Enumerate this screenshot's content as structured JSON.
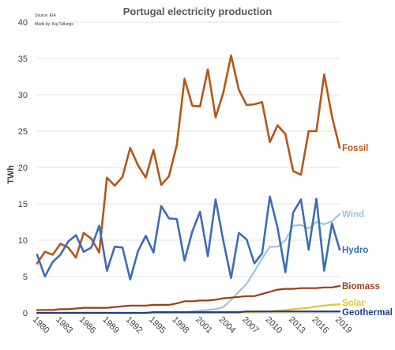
{
  "chart_data": {
    "type": "line",
    "title": "Portugal electricity production",
    "source_lines": [
      "Source: EIA",
      "Made by: Kaj Tallungs"
    ],
    "ylabel": "TWh",
    "xlabel": "",
    "ylim": [
      0,
      40
    ],
    "yticks": [
      0,
      5,
      10,
      15,
      20,
      25,
      30,
      35,
      40
    ],
    "xlim": [
      1980,
      2019
    ],
    "xticks": [
      1980,
      1983,
      1986,
      1989,
      1992,
      1995,
      1998,
      2001,
      2004,
      2007,
      2010,
      2013,
      2016,
      2019
    ],
    "grid": true,
    "legend": "inline-right",
    "x": [
      1980,
      1981,
      1982,
      1983,
      1984,
      1985,
      1986,
      1987,
      1988,
      1989,
      1990,
      1991,
      1992,
      1993,
      1994,
      1995,
      1996,
      1997,
      1998,
      1999,
      2000,
      2001,
      2002,
      2003,
      2004,
      2005,
      2006,
      2007,
      2008,
      2009,
      2010,
      2011,
      2012,
      2013,
      2014,
      2015,
      2016,
      2017,
      2018,
      2019
    ],
    "series": [
      {
        "name": "Fossil",
        "color": "#b5561a",
        "values": [
          6.8,
          8.4,
          8.0,
          9.5,
          9.0,
          7.6,
          11.0,
          10.2,
          8.3,
          18.6,
          17.5,
          18.7,
          22.7,
          20.3,
          18.6,
          22.4,
          17.6,
          18.8,
          23.1,
          32.2,
          28.5,
          28.4,
          33.5,
          26.9,
          30.3,
          35.4,
          30.7,
          28.6,
          28.7,
          29.0,
          23.5,
          25.8,
          24.6,
          19.5,
          19.0,
          25.0,
          25.0,
          32.8,
          27.0,
          22.7
        ]
      },
      {
        "name": "Wind",
        "color": "#9ec3e0",
        "values": [
          0,
          0,
          0,
          0,
          0,
          0,
          0,
          0,
          0,
          0,
          0,
          0,
          0,
          0,
          0,
          0,
          0,
          0,
          0.1,
          0.1,
          0.2,
          0.3,
          0.4,
          0.5,
          0.8,
          1.8,
          2.9,
          4.0,
          5.7,
          7.5,
          9.1,
          9.1,
          10.0,
          12.0,
          12.1,
          11.6,
          12.5,
          12.2,
          12.6,
          13.6
        ]
      },
      {
        "name": "Hydro",
        "color": "#3d6db4",
        "values": [
          8.0,
          5.0,
          7.0,
          8.0,
          9.8,
          10.7,
          8.4,
          9.0,
          12.0,
          5.8,
          9.1,
          9.0,
          4.6,
          8.5,
          10.6,
          8.3,
          14.7,
          13.0,
          12.9,
          7.2,
          11.2,
          13.9,
          7.8,
          15.6,
          9.9,
          4.8,
          11.0,
          10.1,
          6.8,
          8.2,
          16.0,
          11.7,
          5.6,
          13.8,
          15.6,
          8.7,
          15.7,
          5.8,
          12.3,
          8.7
        ]
      },
      {
        "name": "Biomass",
        "color": "#9c3d14",
        "values": [
          0.4,
          0.4,
          0.4,
          0.5,
          0.5,
          0.6,
          0.7,
          0.7,
          0.7,
          0.7,
          0.8,
          0.9,
          1.0,
          1.0,
          1.0,
          1.1,
          1.1,
          1.1,
          1.3,
          1.6,
          1.6,
          1.7,
          1.7,
          1.8,
          2.0,
          2.1,
          2.2,
          2.3,
          2.3,
          2.6,
          2.9,
          3.2,
          3.3,
          3.3,
          3.4,
          3.4,
          3.4,
          3.5,
          3.5,
          3.7
        ]
      },
      {
        "name": "Solar",
        "color": "#e6c42a",
        "values": [
          0,
          0,
          0,
          0,
          0,
          0,
          0,
          0,
          0,
          0,
          0,
          0,
          0,
          0,
          0,
          0,
          0,
          0,
          0,
          0,
          0,
          0,
          0,
          0,
          0,
          0,
          0,
          0.1,
          0.1,
          0.2,
          0.2,
          0.3,
          0.4,
          0.5,
          0.6,
          0.7,
          0.9,
          1.0,
          1.1,
          1.2
        ]
      },
      {
        "name": "Geothermal",
        "color": "#1f3f8c",
        "values": [
          0,
          0,
          0,
          0,
          0,
          0,
          0,
          0,
          0,
          0,
          0,
          0,
          0,
          0,
          0,
          0.1,
          0.1,
          0.1,
          0.1,
          0.1,
          0.1,
          0.1,
          0.1,
          0.1,
          0.1,
          0.1,
          0.1,
          0.2,
          0.2,
          0.2,
          0.2,
          0.2,
          0.2,
          0.2,
          0.2,
          0.2,
          0.2,
          0.2,
          0.2,
          0.2
        ]
      }
    ]
  }
}
